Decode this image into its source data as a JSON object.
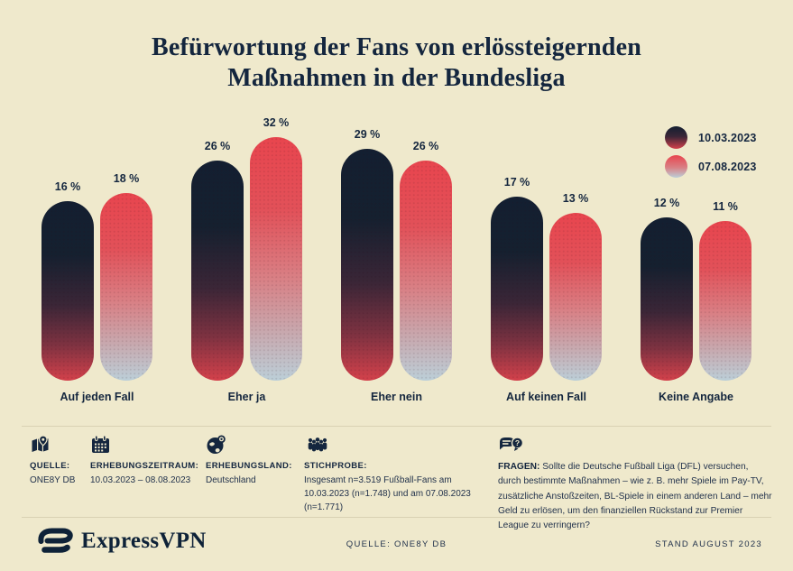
{
  "title_line1": "Befürwortung der Fans von erlössteigernden",
  "title_line2": "Maßnahmen in der Bundesliga",
  "legend": [
    {
      "label": "10.03.2023"
    },
    {
      "label": "07.08.2023"
    }
  ],
  "chart_data": {
    "type": "bar",
    "title": "Befürwortung der Fans von erlössteigernden Maßnahmen in der Bundesliga",
    "categories": [
      "Auf jeden Fall",
      "Eher ja",
      "Eher nein",
      "Auf keinen Fall",
      "Keine Angabe"
    ],
    "series": [
      {
        "name": "10.03.2023",
        "values": [
          16,
          26,
          29,
          17,
          12
        ]
      },
      {
        "name": "07.08.2023",
        "values": [
          18,
          32,
          26,
          13,
          11
        ]
      }
    ],
    "value_suffix": " %",
    "unit": "percent",
    "legend_position": "top-right",
    "grid": false,
    "axes_shown": false
  },
  "footer_info": {
    "source": {
      "icon": "map-pin-icon",
      "label": "QUELLE:",
      "value": "ONE8Y DB"
    },
    "period": {
      "icon": "calendar-icon",
      "label": "ERHEBUNGSZEITRAUM:",
      "value": "10.03.2023 – 08.08.2023"
    },
    "country": {
      "icon": "globe-pin-icon",
      "label": "ERHEBUNGSLAND:",
      "value": "Deutschland"
    },
    "sample": {
      "icon": "people-group-icon",
      "label": "STICHPROBE:",
      "value": "Insgesamt n=3.519 Fußball-Fans am 10.03.2023 (n=1.748) und am 07.08.2023 (n=1.771)"
    },
    "question": {
      "icon": "chat-question-icon",
      "label": "FRAGEN:",
      "value": "Sollte die Deutsche Fußball Liga (DFL) versuchen, durch bestimmte Maßnahmen – wie z. B. mehr Spiele im Pay-TV, zusätzliche Anstoßzeiten, BL-Spiele in einem anderen Land – mehr Geld zu erlösen, um den finanziellen Rückstand zur Premier League zu verringern?"
    }
  },
  "bottom_bar": {
    "brand": "ExpressVPN",
    "source": "QUELLE: ONE8Y DB",
    "stand": "STAND AUGUST 2023"
  },
  "colors": {
    "background": "#EFE9CC",
    "navy": "#14263E",
    "red": "#E8454E",
    "divider": "#D9D2B3",
    "bar_dark_gradient": [
      "#131F31",
      "#15202F",
      "#3B2637",
      "#7E3241",
      "#D4414B"
    ],
    "bar_red_gradient": [
      "#E8454E",
      "#E25159",
      "#D98085",
      "#C8A8AE",
      "#BCCFD8"
    ]
  }
}
